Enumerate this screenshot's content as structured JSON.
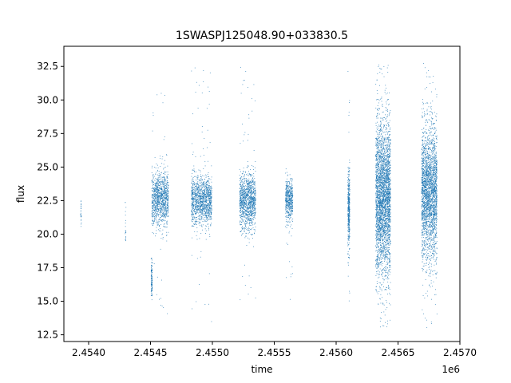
{
  "chart_data": {
    "type": "scatter",
    "title": "1SWASPJ125048.90+033830.5",
    "xlabel": "time",
    "ylabel": "flux",
    "x_offset_label": "1e6",
    "xlim": [
      2453800,
      2457000
    ],
    "ylim": [
      12.0,
      34.0
    ],
    "x_ticks": [
      2454000,
      2454500,
      2455000,
      2455500,
      2456000,
      2456500,
      2457000
    ],
    "x_tick_labels": [
      "2.4540",
      "2.4545",
      "2.4550",
      "2.4555",
      "2.4560",
      "2.4565",
      "2.4570"
    ],
    "y_ticks": [
      12.5,
      15.0,
      17.5,
      20.0,
      22.5,
      25.0,
      27.5,
      30.0,
      32.5
    ],
    "y_tick_labels": [
      "12.5",
      "15.0",
      "17.5",
      "20.0",
      "22.5",
      "25.0",
      "27.5",
      "30.0",
      "32.5"
    ],
    "grid": false,
    "marker_color": "#1f77b4",
    "series": [
      {
        "segments": [
          {
            "x_range": [
              2453935,
              2453942
            ],
            "y_center": 21.5,
            "y_spread": 0.8,
            "y_range": [
              20.3,
              22.5
            ],
            "count": 25
          },
          {
            "x_range": [
              2454295,
              2454302
            ],
            "y_center": 20.8,
            "y_spread": 0.9,
            "y_range": [
              19.5,
              22.8
            ],
            "count": 20
          },
          {
            "x_range": [
              2454510,
              2454645
            ],
            "y_center": 22.6,
            "y_spread": 1.0,
            "y_range": [
              13.0,
              31.5
            ],
            "count": 1100
          },
          {
            "x_range": [
              2454505,
              2454515
            ],
            "y_center": 16.5,
            "y_spread": 0.8,
            "y_range": [
              15.0,
              18.5
            ],
            "count": 120
          },
          {
            "x_range": [
              2454830,
              2454995
            ],
            "y_center": 22.5,
            "y_spread": 0.9,
            "y_range": [
              13.2,
              32.8
            ],
            "count": 1300
          },
          {
            "x_range": [
              2455220,
              2455350
            ],
            "y_center": 22.5,
            "y_spread": 1.0,
            "y_range": [
              13.2,
              32.8
            ],
            "count": 1200
          },
          {
            "x_range": [
              2455590,
              2455650
            ],
            "y_center": 22.5,
            "y_spread": 0.8,
            "y_range": [
              15.0,
              25.0
            ],
            "count": 500
          },
          {
            "x_range": [
              2456095,
              2456110
            ],
            "y_center": 22.0,
            "y_spread": 1.4,
            "y_range": [
              15.0,
              32.3
            ],
            "count": 400
          },
          {
            "x_range": [
              2456320,
              2456440
            ],
            "y_center": 22.8,
            "y_spread": 2.8,
            "y_range": [
              13.0,
              33.0
            ],
            "count": 3200
          },
          {
            "x_range": [
              2456690,
              2456815
            ],
            "y_center": 23.0,
            "y_spread": 2.4,
            "y_range": [
              13.0,
              32.9
            ],
            "count": 2600
          }
        ]
      }
    ]
  }
}
